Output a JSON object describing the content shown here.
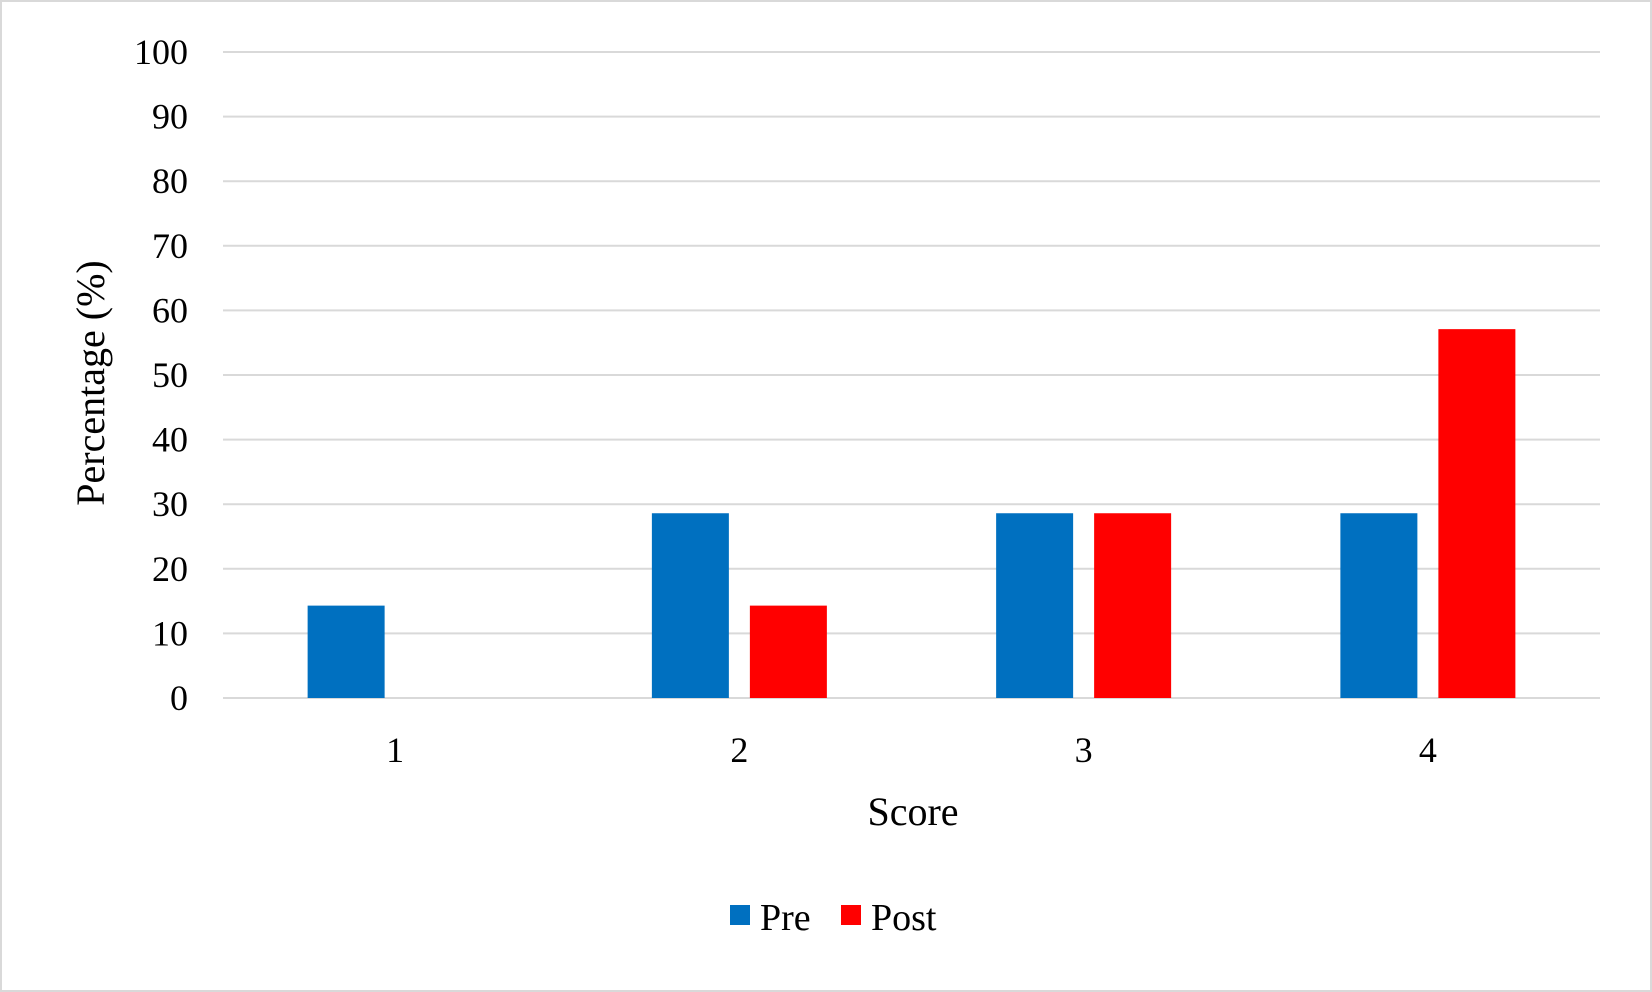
{
  "chart_data": {
    "type": "bar",
    "categories": [
      "1",
      "2",
      "3",
      "4"
    ],
    "series": [
      {
        "name": "Pre",
        "color": "#0070c0",
        "values": [
          14.3,
          28.6,
          28.6,
          28.6
        ]
      },
      {
        "name": "Post",
        "color": "#ff0000",
        "values": [
          0,
          14.3,
          28.6,
          57.1
        ]
      }
    ],
    "xlabel": "Score",
    "ylabel": "Percentage (%)",
    "ylim": [
      0,
      100
    ],
    "yticks": [
      "0",
      "10",
      "20",
      "30",
      "40",
      "50",
      "60",
      "70",
      "80",
      "90",
      "100"
    ],
    "grid": true,
    "legend": "bottom-center"
  }
}
